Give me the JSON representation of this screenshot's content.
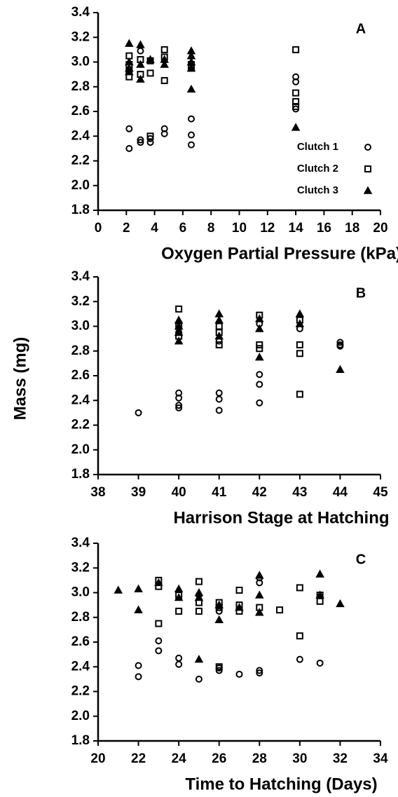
{
  "chart_data": [
    {
      "type": "scatter",
      "label": "A",
      "xlabel": "Oxygen Partial Pressure (kPa)",
      "xlim": [
        0,
        20
      ],
      "xticks": [
        0,
        2,
        4,
        6,
        8,
        10,
        12,
        14,
        16,
        18,
        20
      ],
      "ylim": [
        1.8,
        3.4
      ],
      "yticks": [
        1.8,
        {
          "value": 2,
          "label": "2.0"
        },
        2.2,
        2.4,
        2.6,
        2.8,
        {
          "value": 3,
          "label": "3.0"
        },
        3.2,
        3.4
      ],
      "legend": "lower right",
      "series": [
        {
          "name": "Clutch 1",
          "marker": "circle",
          "color": "#000000",
          "x": [
            2.2,
            2.2,
            3.0,
            3.0,
            3.0,
            3.7,
            3.7,
            4.7,
            4.7,
            6.6,
            6.6,
            6.6,
            14.0,
            14.0,
            14.0
          ],
          "y": [
            2.46,
            2.3,
            3.09,
            2.37,
            2.35,
            2.38,
            2.35,
            2.46,
            2.42,
            2.54,
            2.41,
            2.33,
            2.88,
            2.84,
            2.62
          ]
        },
        {
          "name": "Clutch 2",
          "marker": "square",
          "color": "#000000",
          "x": [
            2.2,
            2.2,
            2.2,
            2.2,
            3.0,
            3.0,
            3.7,
            3.7,
            3.7,
            4.7,
            4.7,
            4.7,
            6.6,
            6.6,
            14.0,
            14.0,
            14.0,
            14.0
          ],
          "y": [
            3.05,
            2.98,
            2.93,
            2.88,
            3.02,
            2.9,
            3.01,
            2.91,
            2.4,
            3.1,
            3.04,
            2.85,
            2.98,
            2.95,
            3.1,
            2.75,
            2.68,
            2.64
          ]
        },
        {
          "name": "Clutch 3",
          "marker": "triangle",
          "color": "#000000",
          "x": [
            2.2,
            2.2,
            2.2,
            2.2,
            3.0,
            3.0,
            3.0,
            3.7,
            4.7,
            4.7,
            6.6,
            6.6,
            6.6,
            6.6,
            6.6,
            14.0
          ],
          "y": [
            3.15,
            3.0,
            2.95,
            2.92,
            3.14,
            2.98,
            2.86,
            3.02,
            3.02,
            2.98,
            3.09,
            3.05,
            3.0,
            2.95,
            2.78,
            2.47
          ]
        }
      ]
    },
    {
      "type": "scatter",
      "label": "B",
      "xlabel": "Harrison Stage at Hatching",
      "ylabel": "Mass (mg)",
      "xlim": [
        38,
        45
      ],
      "xticks": [
        38,
        39,
        40,
        41,
        42,
        43,
        44,
        45
      ],
      "ylim": [
        1.8,
        3.4
      ],
      "yticks": [
        1.8,
        {
          "value": 2,
          "label": "2.0"
        },
        2.2,
        2.4,
        2.6,
        2.8,
        {
          "value": 3,
          "label": "3.0"
        },
        3.2,
        3.4
      ],
      "series": [
        {
          "marker": "circle",
          "color": "#000000",
          "x": [
            39,
            40,
            40,
            40,
            40,
            41,
            41,
            41,
            42,
            42,
            42,
            42,
            43,
            44,
            44,
            44,
            40,
            41
          ],
          "y": [
            2.3,
            2.46,
            2.42,
            2.36,
            2.34,
            2.46,
            2.41,
            2.32,
            2.61,
            2.53,
            2.38,
            3.02,
            2.98,
            2.87,
            2.85,
            2.84,
            2.95,
            2.88
          ]
        },
        {
          "marker": "square",
          "color": "#000000",
          "x": [
            40,
            40,
            40,
            41,
            41,
            41,
            42,
            42,
            42,
            43,
            43,
            43,
            43
          ],
          "y": [
            3.14,
            3.0,
            2.92,
            3.0,
            2.95,
            2.85,
            3.09,
            2.85,
            2.82,
            3.05,
            2.85,
            2.78,
            2.45
          ]
        },
        {
          "marker": "triangle",
          "color": "#000000",
          "x": [
            40,
            40,
            40,
            40,
            41,
            41,
            41,
            42,
            42,
            42,
            43,
            43,
            44
          ],
          "y": [
            3.05,
            3.0,
            2.95,
            2.88,
            3.1,
            3.05,
            2.92,
            3.06,
            2.98,
            2.75,
            3.1,
            3.02,
            2.65
          ]
        }
      ]
    },
    {
      "type": "scatter",
      "label": "C",
      "xlabel": "Time to Hatching (Days)",
      "xlim": [
        20,
        34
      ],
      "xticks": [
        20,
        22,
        24,
        26,
        28,
        30,
        32,
        34
      ],
      "ylim": [
        1.8,
        3.4
      ],
      "yticks": [
        1.8,
        {
          "value": 2,
          "label": "2.0"
        },
        2.2,
        2.4,
        2.6,
        2.8,
        {
          "value": 3,
          "label": "3.0"
        },
        3.2,
        3.4
      ],
      "series": [
        {
          "marker": "circle",
          "color": "#000000",
          "x": [
            22,
            22,
            23,
            23,
            24,
            24,
            25,
            26,
            26,
            26,
            27,
            28,
            28,
            28,
            28,
            30,
            31,
            25
          ],
          "y": [
            2.41,
            2.32,
            2.61,
            2.53,
            2.47,
            2.42,
            2.3,
            2.39,
            2.37,
            2.85,
            2.34,
            2.37,
            2.35,
            3.08,
            3.12,
            2.46,
            2.43,
            2.98
          ]
        },
        {
          "marker": "square",
          "color": "#000000",
          "x": [
            23,
            23,
            23,
            24,
            24,
            25,
            25,
            25,
            26,
            26,
            26,
            27,
            27,
            27,
            28,
            29,
            30,
            30,
            31,
            31
          ],
          "y": [
            3.1,
            3.05,
            2.75,
            2.98,
            2.85,
            3.09,
            2.92,
            2.85,
            2.92,
            2.88,
            2.4,
            3.02,
            2.9,
            2.85,
            2.88,
            2.86,
            3.04,
            2.65,
            2.98,
            2.93
          ]
        },
        {
          "marker": "triangle",
          "color": "#000000",
          "x": [
            21,
            22,
            22,
            23,
            24,
            24,
            25,
            25,
            25,
            26,
            26,
            27,
            28,
            28,
            28,
            31,
            31,
            32
          ],
          "y": [
            3.02,
            3.03,
            2.86,
            3.08,
            3.03,
            2.96,
            3.0,
            2.96,
            2.46,
            2.9,
            2.78,
            2.88,
            3.14,
            2.98,
            2.84,
            3.15,
            2.98,
            2.91
          ]
        }
      ]
    }
  ]
}
